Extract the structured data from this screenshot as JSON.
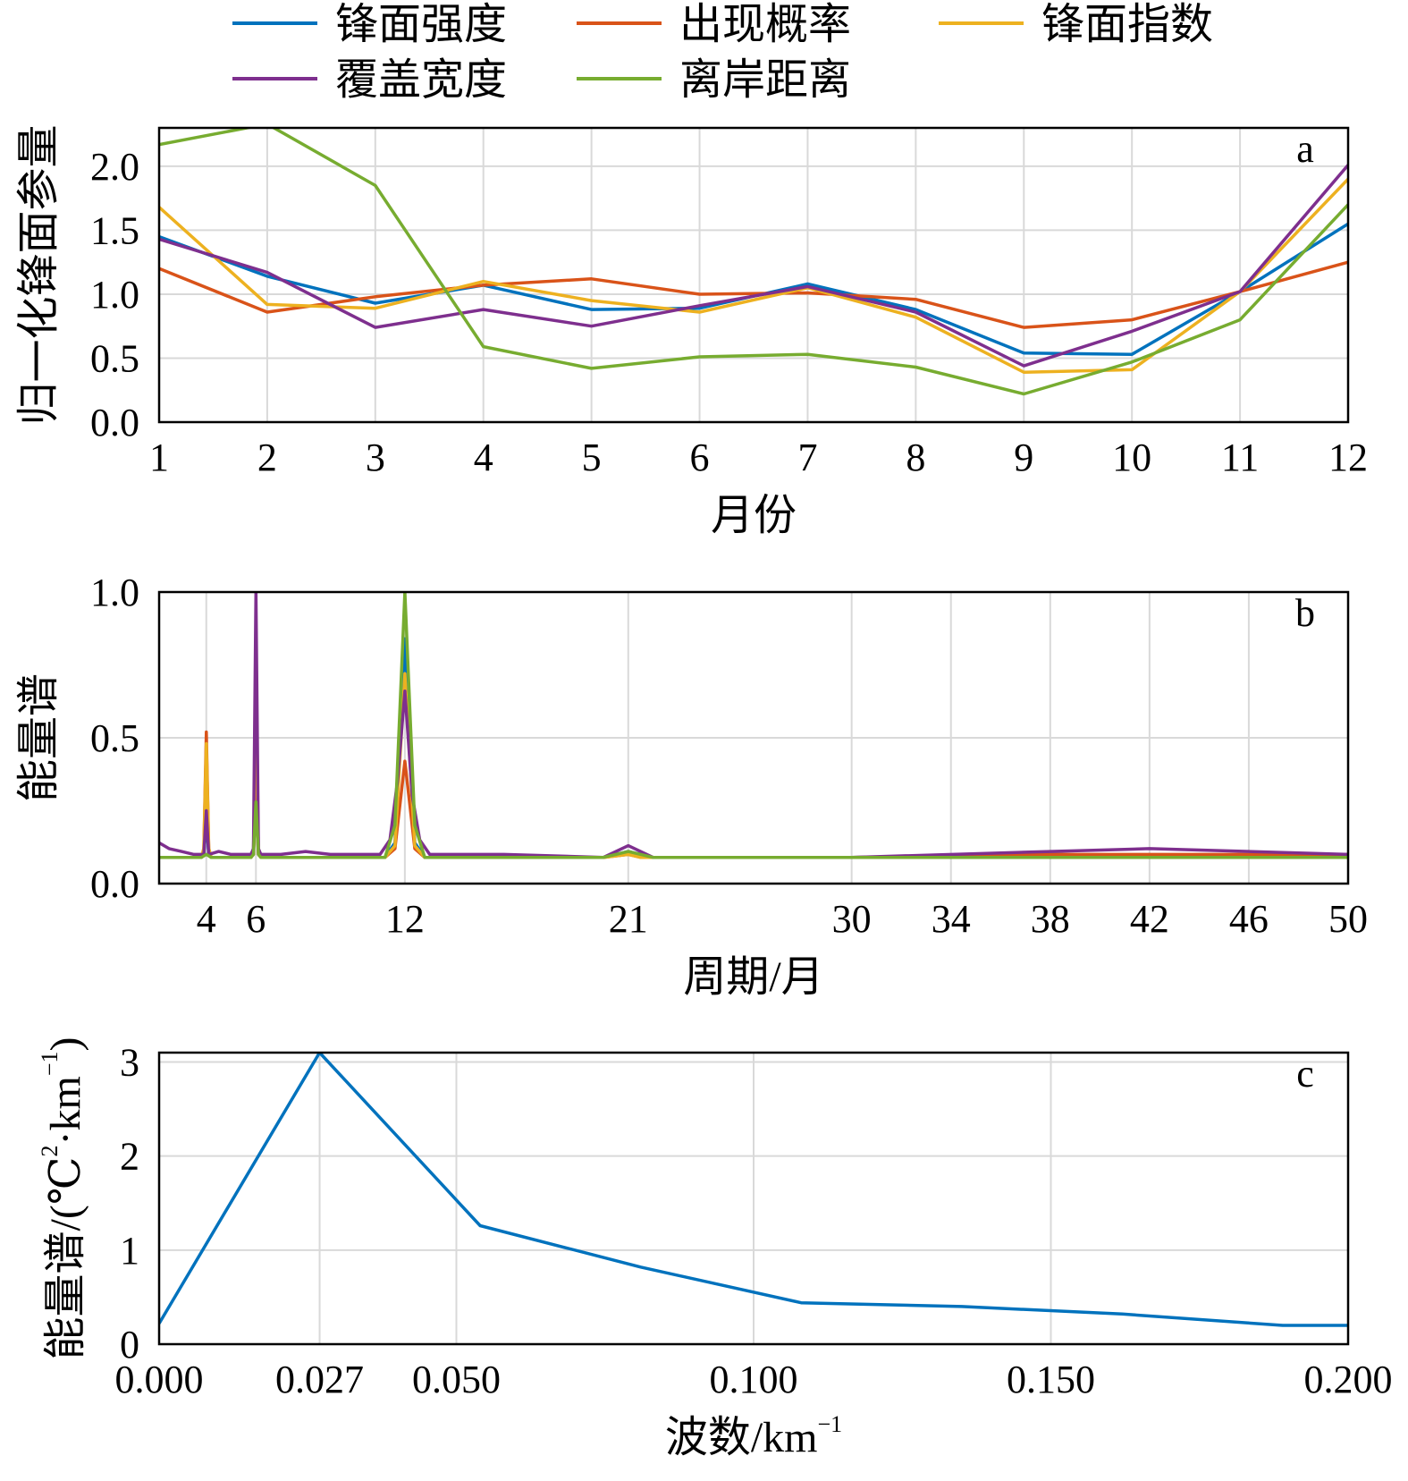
{
  "legend": {
    "items": [
      {
        "name": "锋面强度",
        "color": "#0072BD"
      },
      {
        "name": "出现概率",
        "color": "#D95319"
      },
      {
        "name": "锋面指数",
        "color": "#EDB120"
      },
      {
        "name": "覆盖宽度",
        "color": "#7E2F8E"
      },
      {
        "name": "离岸距离",
        "color": "#77AC30"
      }
    ]
  },
  "chart_data": [
    {
      "panel": "a",
      "type": "line",
      "xlabel": "月份",
      "ylabel": "归一化锋面参量",
      "x": [
        1,
        2,
        3,
        4,
        5,
        6,
        7,
        8,
        9,
        10,
        11,
        12
      ],
      "xticks": [
        1,
        2,
        3,
        4,
        5,
        6,
        7,
        8,
        9,
        10,
        11,
        12
      ],
      "yticks": [
        0.0,
        0.5,
        1.0,
        1.5,
        2.0
      ],
      "ytick_labels": [
        "0.0",
        "0.5",
        "1.0",
        "1.5",
        "2.0"
      ],
      "xlim": [
        1,
        12
      ],
      "ylim": [
        0,
        2.3
      ],
      "grid": true,
      "series": [
        {
          "name": "锋面强度",
          "color": "#0072BD",
          "values": [
            1.45,
            1.14,
            0.93,
            1.07,
            0.88,
            0.89,
            1.08,
            0.88,
            0.54,
            0.53,
            1.02,
            1.55
          ]
        },
        {
          "name": "出现概率",
          "color": "#D95319",
          "values": [
            1.2,
            0.86,
            0.98,
            1.07,
            1.12,
            1.0,
            1.01,
            0.96,
            0.74,
            0.8,
            1.02,
            1.25
          ]
        },
        {
          "name": "锋面指数",
          "color": "#EDB120",
          "values": [
            1.68,
            0.92,
            0.89,
            1.1,
            0.95,
            0.86,
            1.05,
            0.82,
            0.39,
            0.41,
            1.02,
            1.9
          ]
        },
        {
          "name": "覆盖宽度",
          "color": "#7E2F8E",
          "values": [
            1.43,
            1.17,
            0.74,
            0.88,
            0.75,
            0.91,
            1.06,
            0.86,
            0.44,
            0.71,
            1.02,
            2.01
          ]
        },
        {
          "name": "离岸距离",
          "color": "#77AC30",
          "values": [
            2.17,
            2.33,
            1.85,
            0.59,
            0.42,
            0.51,
            0.53,
            0.43,
            0.22,
            0.47,
            0.8,
            1.7
          ]
        }
      ]
    },
    {
      "panel": "b",
      "type": "line",
      "xlabel": "周期/月",
      "ylabel": "能量谱",
      "xticks": [
        4,
        6,
        12,
        21,
        30,
        34,
        38,
        42,
        46,
        50
      ],
      "yticks": [
        0.0,
        0.5,
        1.0
      ],
      "ytick_labels": [
        "0.0",
        "0.5",
        "1.0"
      ],
      "xlim": [
        2.1,
        50
      ],
      "ylim": [
        0,
        1
      ],
      "grid": true,
      "series": [
        {
          "name": "锋面强度",
          "color": "#0072BD",
          "x": [
            2.1,
            3.8,
            3.9,
            4.0,
            4.1,
            4.2,
            5.8,
            5.9,
            6.0,
            6.1,
            6.2,
            11.2,
            11.6,
            12.0,
            12.4,
            12.8,
            20.0,
            21.0,
            21.5,
            22.0,
            30.0,
            38.0,
            46.0,
            50.0
          ],
          "values": [
            0.09,
            0.09,
            0.1,
            0.22,
            0.1,
            0.09,
            0.09,
            0.1,
            0.6,
            0.1,
            0.09,
            0.09,
            0.14,
            0.84,
            0.14,
            0.09,
            0.09,
            0.11,
            0.1,
            0.09,
            0.09,
            0.1,
            0.09,
            0.09
          ]
        },
        {
          "name": "出现概率",
          "color": "#D95319",
          "x": [
            2.1,
            3.8,
            3.9,
            4.0,
            4.1,
            4.2,
            5.8,
            5.9,
            6.0,
            6.1,
            6.2,
            11.2,
            11.6,
            12.0,
            12.4,
            12.8,
            20.0,
            21.0,
            21.5,
            22.0,
            30.0,
            38.0,
            46.0,
            50.0
          ],
          "values": [
            0.09,
            0.09,
            0.12,
            0.52,
            0.12,
            0.09,
            0.09,
            0.1,
            0.3,
            0.1,
            0.09,
            0.09,
            0.12,
            0.42,
            0.12,
            0.09,
            0.09,
            0.1,
            0.09,
            0.09,
            0.09,
            0.1,
            0.1,
            0.1
          ]
        },
        {
          "name": "锋面指数",
          "color": "#EDB120",
          "x": [
            2.1,
            3.8,
            3.9,
            4.0,
            4.1,
            4.2,
            5.8,
            5.9,
            6.0,
            6.1,
            6.2,
            11.2,
            11.6,
            12.0,
            12.4,
            12.8,
            20.0,
            21.0,
            21.5,
            22.0,
            30.0,
            38.0,
            46.0,
            50.0
          ],
          "values": [
            0.09,
            0.09,
            0.12,
            0.48,
            0.12,
            0.09,
            0.09,
            0.1,
            0.65,
            0.1,
            0.09,
            0.09,
            0.13,
            0.72,
            0.13,
            0.09,
            0.09,
            0.1,
            0.09,
            0.09,
            0.09,
            0.09,
            0.09,
            0.09
          ]
        },
        {
          "name": "覆盖宽度",
          "color": "#7E2F8E",
          "x": [
            2.1,
            2.5,
            3.0,
            3.5,
            3.9,
            4.0,
            4.1,
            4.5,
            5.0,
            5.8,
            5.9,
            6.0,
            6.1,
            6.2,
            7.0,
            8.0,
            9.0,
            10.0,
            11.0,
            11.4,
            11.7,
            12.0,
            12.3,
            12.6,
            13.0,
            16.0,
            20.0,
            21.0,
            22.0,
            30.0,
            38.0,
            42.0,
            50.0
          ],
          "values": [
            0.14,
            0.12,
            0.11,
            0.1,
            0.1,
            0.25,
            0.1,
            0.11,
            0.1,
            0.1,
            0.12,
            1.0,
            0.12,
            0.1,
            0.1,
            0.11,
            0.1,
            0.1,
            0.1,
            0.15,
            0.35,
            0.66,
            0.3,
            0.15,
            0.1,
            0.1,
            0.09,
            0.13,
            0.09,
            0.09,
            0.11,
            0.12,
            0.1
          ]
        },
        {
          "name": "离岸距离",
          "color": "#77AC30",
          "x": [
            2.1,
            3.8,
            4.0,
            4.2,
            5.8,
            5.9,
            6.0,
            6.1,
            6.2,
            11.2,
            11.6,
            12.0,
            12.4,
            12.8,
            20.0,
            21.0,
            22.0,
            30.0,
            38.0,
            46.0,
            50.0
          ],
          "values": [
            0.09,
            0.09,
            0.1,
            0.09,
            0.09,
            0.1,
            0.28,
            0.1,
            0.09,
            0.09,
            0.2,
            1.0,
            0.2,
            0.09,
            0.09,
            0.11,
            0.09,
            0.09,
            0.09,
            0.09,
            0.09
          ]
        }
      ]
    },
    {
      "panel": "c",
      "type": "line",
      "xlabel": "波数/km",
      "xlabel_sup": "−1",
      "ylabel": "能量谱/(℃",
      "ylabel_sup1": "2",
      "ylabel_mid": "·km",
      "ylabel_sup2": "−1",
      "ylabel_end": ")",
      "xticks": [
        0.0,
        0.027,
        0.05,
        0.1,
        0.15,
        0.2
      ],
      "xtick_labels": [
        "0.000",
        "0.027",
        "0.050",
        "0.100",
        "0.150",
        "0.200"
      ],
      "yticks": [
        0,
        1,
        2,
        3
      ],
      "ytick_labels": [
        "0",
        "1",
        "2",
        "3"
      ],
      "xlim": [
        0,
        0.2
      ],
      "ylim": [
        0,
        3.1
      ],
      "grid": true,
      "series": [
        {
          "name": "能量谱",
          "color": "#0072BD",
          "x": [
            0.0,
            0.027,
            0.054,
            0.081,
            0.108,
            0.135,
            0.162,
            0.189,
            0.2
          ],
          "values": [
            0.22,
            3.1,
            1.26,
            0.82,
            0.44,
            0.4,
            0.32,
            0.2,
            0.2
          ]
        }
      ]
    }
  ]
}
